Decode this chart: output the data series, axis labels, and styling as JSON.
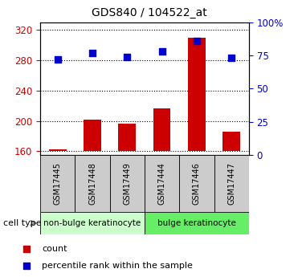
{
  "title": "GDS840 / 104522_at",
  "samples": [
    "GSM17445",
    "GSM17448",
    "GSM17449",
    "GSM17444",
    "GSM17446",
    "GSM17447"
  ],
  "counts": [
    163,
    202,
    196,
    217,
    310,
    186
  ],
  "percentile_ranks": [
    72,
    77,
    74,
    78,
    86,
    73
  ],
  "bar_color": "#cc0000",
  "dot_color": "#0000cc",
  "ylim_left": [
    155,
    330
  ],
  "yticks_left": [
    160,
    200,
    240,
    280,
    320
  ],
  "ylim_right": [
    0,
    100
  ],
  "yticks_right": [
    0,
    25,
    50,
    75,
    100
  ],
  "ytick_labels_right": [
    "0",
    "25",
    "50",
    "75",
    "100%"
  ],
  "cell_groups": [
    {
      "label": "non-bulge keratinocyte",
      "indices": [
        0,
        1,
        2
      ],
      "color": "#ccffcc"
    },
    {
      "label": "bulge keratinocyte",
      "indices": [
        3,
        4,
        5
      ],
      "color": "#66ee66"
    }
  ],
  "cell_type_label": "cell type",
  "legend_items": [
    {
      "color": "#cc0000",
      "label": "count"
    },
    {
      "color": "#0000cc",
      "label": "percentile rank within the sample"
    }
  ],
  "left_tick_color": "#cc0000",
  "right_tick_color": "#0000cc",
  "bar_bottom": 160,
  "bar_width": 0.5,
  "sample_box_color": "#cccccc",
  "grid_linestyle": ":",
  "grid_linewidth": 0.8,
  "grid_color": "#000000"
}
